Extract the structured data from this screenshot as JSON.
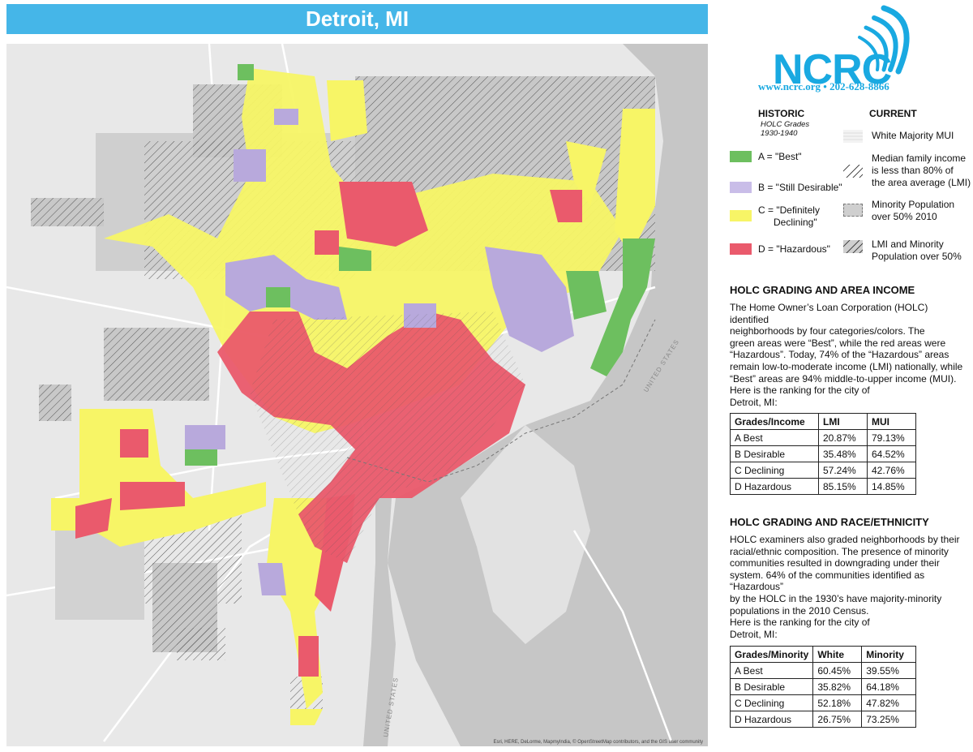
{
  "title": "Detroit, MI",
  "logo": {
    "name": "NCRC",
    "website": "www.ncrc.org",
    "phone": "202-628-8866"
  },
  "map": {
    "attribution": "Esri, HERE, DeLorme, MapmyIndia, © OpenStreetMap contributors, and the GIS user community",
    "street_labels": [
      "UNITED STATES",
      "UNITED STATES"
    ]
  },
  "legend": {
    "historic_heading": "HISTORIC",
    "historic_sub1": "HOLC Grades",
    "historic_sub2": "1930-1940",
    "current_heading": "CURRENT",
    "grades": [
      {
        "label": "A = \"Best\"",
        "color": "#6dbf5f"
      },
      {
        "label": "B = \"Still Desirable\"",
        "color": "#b8a9dc"
      },
      {
        "label_line1": "C = \"Definitely",
        "label_line2": "Declining\"",
        "color": "#f7f566"
      },
      {
        "label": "D = \"Hazardous\"",
        "color": "#ea5a6c"
      }
    ],
    "current": [
      {
        "lines": [
          "White Majority MUI"
        ]
      },
      {
        "lines": [
          "Median family income",
          "is less than 80% of",
          "the area average (LMI)"
        ]
      },
      {
        "lines": [
          "Minority Population",
          "over 50% 2010"
        ]
      },
      {
        "lines": [
          "LMI and Minority",
          "Population over 50%"
        ]
      }
    ]
  },
  "income_section": {
    "title": "HOLC GRADING AND AREA INCOME",
    "paragraph_lines": [
      "The Home Owner’s Loan Corporation (HOLC) identified",
      "neighborhoods by four categories/colors. The",
      "green areas were “Best”, while the red areas were",
      "“Hazardous”. Today, 74% of the “Hazardous” areas",
      "remain low-to-moderate income (LMI) nationally, while",
      "“Best” areas are 94% middle-to-upper income (MUI).",
      "Here is the ranking for the city of",
      "Detroit, MI:"
    ],
    "table": {
      "headers": [
        "Grades/Income",
        "LMI",
        "MUI"
      ],
      "rows": [
        [
          "A Best",
          "20.87%",
          "79.13%"
        ],
        [
          "B Desirable",
          "35.48%",
          "64.52%"
        ],
        [
          "C Declining",
          "57.24%",
          "42.76%"
        ],
        [
          "D Hazardous",
          "85.15%",
          "14.85%"
        ]
      ]
    }
  },
  "race_section": {
    "title": "HOLC GRADING AND RACE/ETHNICITY",
    "paragraph_lines": [
      "HOLC examiners also graded neighborhoods by their",
      "racial/ethnic composition. The presence of minority",
      "communities resulted in downgrading under their",
      "system. 64% of the communities identified as “Hazardous”",
      "by the HOLC in the 1930’s have majority-minority",
      "populations in the 2010 Census.",
      "Here is the ranking for the city of",
      "Detroit, MI:"
    ],
    "table": {
      "headers": [
        "Grades/Minority",
        "White",
        "Minority"
      ],
      "rows": [
        [
          "A Best",
          "60.45%",
          "39.55%"
        ],
        [
          "B Desirable",
          "35.82%",
          "64.18%"
        ],
        [
          "C Declining",
          "52.18%",
          "47.82%"
        ],
        [
          "D Hazardous",
          "26.75%",
          "73.25%"
        ]
      ]
    }
  }
}
